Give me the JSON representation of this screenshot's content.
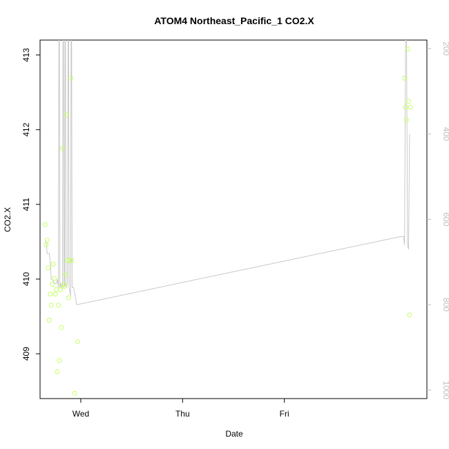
{
  "chart_data": {
    "type": "scatter",
    "title": "ATOM4 Northeast_Pacific_1 CO2.X",
    "xlabel": "Date",
    "ylabel": "CO2.X",
    "x_unit": "days since Tue 00:00",
    "xlim": [
      0.6,
      4.4
    ],
    "ylim": [
      408.4,
      413.2
    ],
    "x_ticks": [
      {
        "value": 1,
        "label": "Wed"
      },
      {
        "value": 2,
        "label": "Thu"
      },
      {
        "value": 3,
        "label": "Fri"
      }
    ],
    "y_ticks": [
      409,
      410,
      411,
      412,
      413
    ],
    "y2_ticks": [
      200,
      400,
      600,
      800,
      1000
    ],
    "y2lim": [
      1020,
      180
    ],
    "colors": {
      "points": "#c6ff66",
      "line": "#c8c8c8",
      "axis": "#000000",
      "right_axis": "#bdbdbd"
    },
    "series": [
      {
        "type": "scatter",
        "points": [
          [
            0.65,
            410.73
          ],
          [
            0.66,
            410.46
          ],
          [
            0.67,
            410.52
          ],
          [
            0.68,
            410.15
          ],
          [
            0.69,
            409.45
          ],
          [
            0.7,
            409.8
          ],
          [
            0.71,
            409.65
          ],
          [
            0.72,
            409.93
          ],
          [
            0.73,
            410.2
          ],
          [
            0.74,
            410.01
          ],
          [
            0.75,
            409.8
          ],
          [
            0.76,
            409.86
          ],
          [
            0.77,
            408.76
          ],
          [
            0.78,
            409.65
          ],
          [
            0.79,
            408.91
          ],
          [
            0.8,
            409.86
          ],
          [
            0.81,
            409.35
          ],
          [
            0.82,
            411.75
          ],
          [
            0.83,
            409.93
          ],
          [
            0.84,
            409.9
          ],
          [
            0.85,
            410.06
          ],
          [
            0.86,
            412.2
          ],
          [
            0.87,
            410.25
          ],
          [
            0.88,
            409.75
          ],
          [
            0.89,
            410.25
          ],
          [
            0.9,
            412.69
          ],
          [
            0.91,
            410.25
          ],
          [
            0.94,
            408.47
          ],
          [
            0.97,
            409.16
          ],
          [
            4.18,
            412.69
          ],
          [
            4.19,
            412.3
          ],
          [
            4.2,
            412.13
          ],
          [
            4.21,
            413.08
          ],
          [
            4.22,
            412.38
          ],
          [
            4.23,
            409.52
          ],
          [
            4.24,
            412.3
          ]
        ]
      },
      {
        "type": "line",
        "axis": "right",
        "points": [
          [
            0.66,
            650
          ],
          [
            0.67,
            680
          ],
          [
            0.69,
            680
          ],
          [
            0.7,
            700
          ],
          [
            0.71,
            740
          ],
          [
            0.72,
            740
          ],
          [
            0.73,
            745
          ],
          [
            0.74,
            750
          ],
          [
            0.75,
            750
          ],
          [
            0.76,
            750
          ],
          [
            0.77,
            740
          ],
          [
            0.78,
            760
          ],
          [
            0.785,
            180
          ],
          [
            0.79,
            180
          ],
          [
            0.795,
            760
          ],
          [
            0.8,
            750
          ],
          [
            0.81,
            760
          ],
          [
            0.82,
            760
          ],
          [
            0.825,
            180
          ],
          [
            0.83,
            180
          ],
          [
            0.835,
            760
          ],
          [
            0.84,
            755
          ],
          [
            0.845,
            180
          ],
          [
            0.85,
            180
          ],
          [
            0.855,
            760
          ],
          [
            0.87,
            750
          ],
          [
            0.875,
            180
          ],
          [
            0.88,
            180
          ],
          [
            0.885,
            760
          ],
          [
            0.9,
            780
          ],
          [
            0.905,
            180
          ],
          [
            0.91,
            180
          ],
          [
            0.915,
            760
          ],
          [
            0.93,
            760
          ],
          [
            0.96,
            800
          ],
          [
            4.15,
            640
          ],
          [
            4.17,
            640
          ],
          [
            4.18,
            660
          ],
          [
            4.19,
            180
          ],
          [
            4.2,
            180
          ],
          [
            4.21,
            660
          ],
          [
            4.22,
            670
          ],
          [
            4.23,
            400
          ]
        ]
      }
    ]
  }
}
